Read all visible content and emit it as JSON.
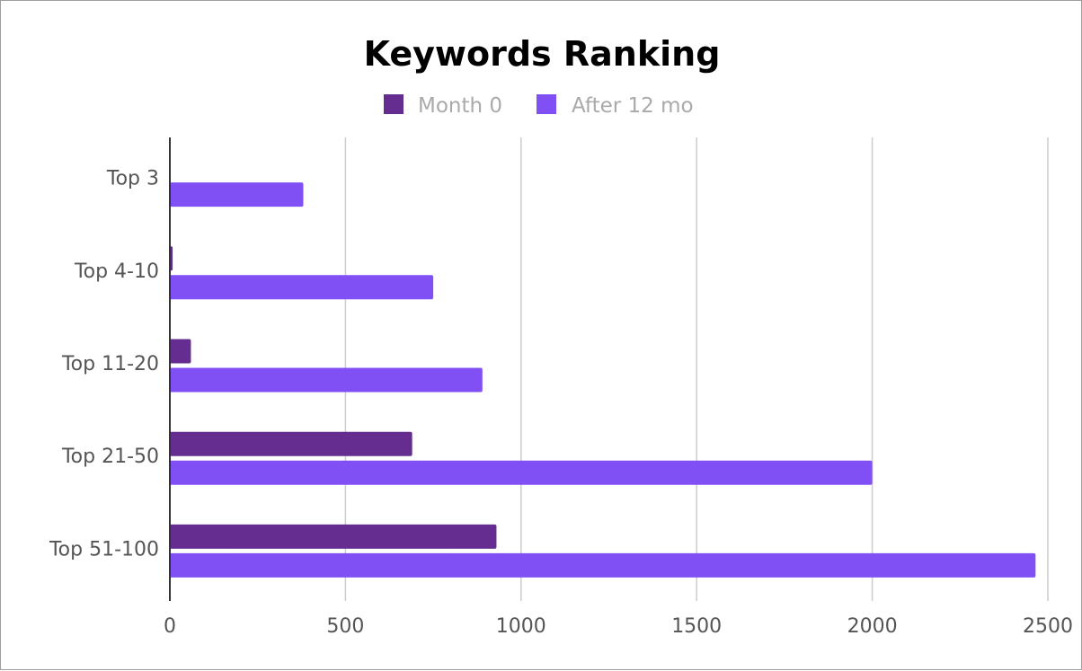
{
  "chart_data": {
    "type": "bar",
    "orientation": "horizontal",
    "title": "Keywords Ranking",
    "categories": [
      "Top 3",
      "Top 4-10",
      "Top 11-20",
      "Top 21-50",
      "Top 51-100"
    ],
    "series": [
      {
        "name": "Month 0",
        "color": "#662d91",
        "values": [
          2,
          8,
          60,
          690,
          930
        ]
      },
      {
        "name": "After 12 mo",
        "color": "#8150f5",
        "values": [
          380,
          750,
          890,
          2000,
          2465
        ]
      }
    ],
    "xlim": [
      0,
      2500
    ],
    "x_ticks": [
      "0",
      "500",
      "1000",
      "1500",
      "2000",
      "2500"
    ],
    "grid": true,
    "legend_position": "top"
  }
}
